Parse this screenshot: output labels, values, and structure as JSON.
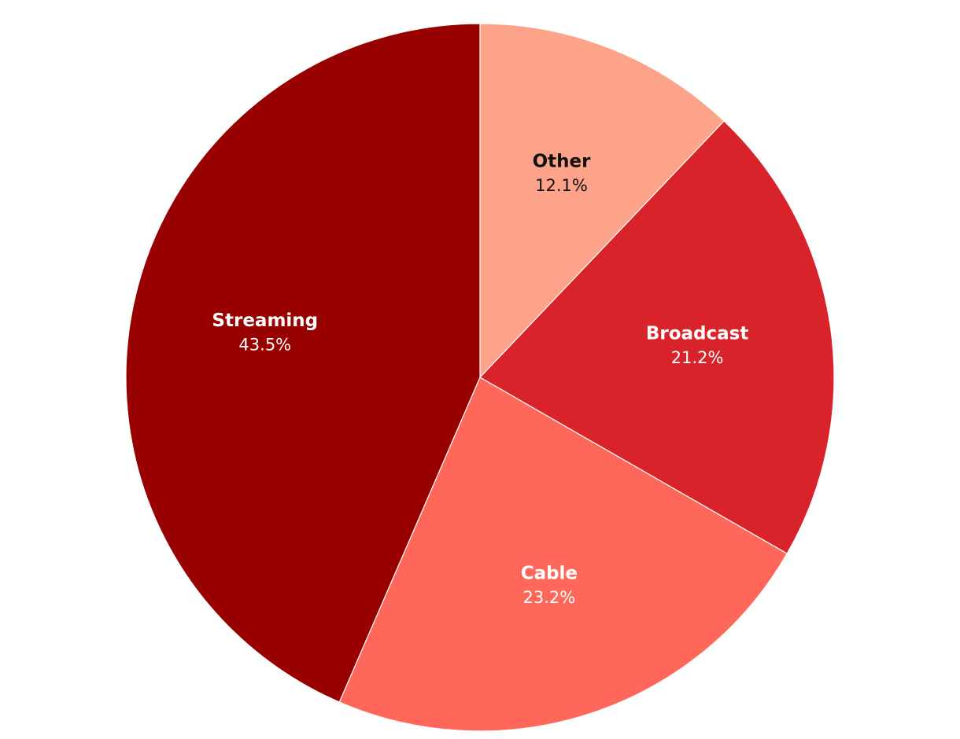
{
  "chart_data": {
    "type": "pie",
    "categories": [
      "Other",
      "Broadcast",
      "Cable",
      "Streaming"
    ],
    "values": [
      12.1,
      21.2,
      23.2,
      43.5
    ],
    "value_labels": [
      "12.1%",
      "21.2%",
      "23.2%",
      "43.5%"
    ],
    "colors": [
      "#fca38a",
      "#d9232a",
      "#fe6759",
      "#990000"
    ]
  }
}
